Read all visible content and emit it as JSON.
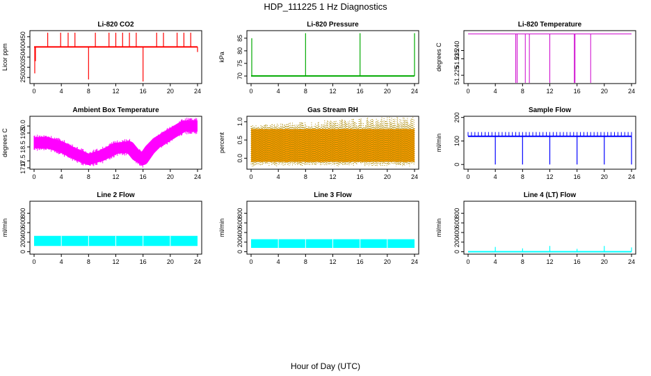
{
  "page": {
    "title": "HDP_111225  1 Hz Diagnostics",
    "xlabel": "Hour of Day (UTC)"
  },
  "chart_data": [
    {
      "type": "line",
      "title": "Li-820 CO2",
      "ylabel": "Licor ppm",
      "color": "#ff0000",
      "xlim": [
        0,
        24
      ],
      "ylim": [
        220,
        480
      ],
      "xticks": [
        0,
        4,
        8,
        12,
        16,
        20,
        24
      ],
      "yticks": [
        250,
        300,
        350,
        400,
        450
      ],
      "baseline": 400,
      "x": [
        0.1,
        0.2,
        1,
        2,
        3,
        3.9,
        5,
        6,
        7,
        8,
        9,
        10,
        11,
        12,
        13,
        14,
        15,
        16,
        17,
        18,
        19,
        20,
        21,
        22,
        23,
        24
      ],
      "y": [
        270,
        330,
        400,
        470,
        400,
        470,
        470,
        470,
        400,
        240,
        470,
        400,
        470,
        470,
        470,
        470,
        470,
        230,
        400,
        470,
        470,
        400,
        470,
        470,
        470,
        375
      ]
    },
    {
      "type": "line",
      "title": "Li-820 Pressure",
      "ylabel": "kPa",
      "color": "#00aa00",
      "xlim": [
        0,
        24
      ],
      "ylim": [
        67,
        88
      ],
      "xticks": [
        0,
        4,
        8,
        12,
        16,
        20,
        24
      ],
      "yticks": [
        70,
        75,
        80,
        85
      ],
      "baseline": 70,
      "x": [
        0.1,
        0.2,
        8,
        16,
        24
      ],
      "y": [
        85,
        70,
        87,
        87,
        87
      ]
    },
    {
      "type": "line",
      "title": "Li-820 Temperature",
      "ylabel": "degrees C",
      "color": "#cc00cc",
      "xlim": [
        0,
        24
      ],
      "ylim": [
        51.22,
        51.252
      ],
      "xticks": [
        0,
        4,
        8,
        12,
        16,
        20,
        24
      ],
      "yticks": [
        51.225,
        51.235,
        51.24
      ],
      "ytick_labels": [
        "51.225",
        "51.235",
        "51.240"
      ],
      "baseline": 51.25,
      "x": [
        7,
        7.2,
        8.4,
        9,
        12,
        15.6,
        15.7,
        18
      ],
      "y": [
        51.22,
        51.22,
        51.22,
        51.22,
        51.22,
        51.22,
        51.22,
        51.22
      ]
    },
    {
      "type": "line",
      "title": "Ambient Box Temperature",
      "ylabel": "degrees C",
      "color": "#ff00ff",
      "xlim": [
        0,
        24
      ],
      "ylim": [
        16.9,
        20.7
      ],
      "xticks": [
        0,
        4,
        8,
        12,
        16,
        20,
        24
      ],
      "yticks": [
        17,
        17.5,
        18.5,
        19.5,
        20
      ],
      "ytick_labels": [
        "17.0",
        "17.5",
        "18.5",
        "19.5",
        "20.0"
      ],
      "x": [
        0,
        2,
        4,
        6,
        8,
        10,
        12,
        14,
        15,
        16,
        17,
        18,
        20,
        22,
        24
      ],
      "y": [
        18.8,
        18.8,
        18.5,
        18.0,
        17.6,
        17.9,
        18.4,
        18.5,
        17.9,
        17.6,
        18.3,
        18.8,
        19.4,
        20.0,
        20.0
      ]
    },
    {
      "type": "scatter",
      "title": "Gas Stream RH",
      "ylabel": "percent",
      "color": "#ff9900",
      "color2": "#aa8800",
      "xlim": [
        0,
        24
      ],
      "ylim": [
        -0.3,
        1.15
      ],
      "xticks": [
        0,
        4,
        8,
        12,
        16,
        20,
        24
      ],
      "yticks": [
        0,
        0.5,
        1
      ],
      "ytick_labels": [
        "0.0",
        "0.5",
        "1.0"
      ],
      "band_low": -0.1,
      "band_high": 0.8
    },
    {
      "type": "line",
      "title": "Sample Flow",
      "ylabel": "ml/min",
      "color": "#0000ff",
      "xlim": [
        0,
        24
      ],
      "ylim": [
        -20,
        205
      ],
      "xticks": [
        0,
        4,
        8,
        12,
        16,
        20,
        24
      ],
      "yticks": [
        0,
        100,
        200
      ],
      "baseline": 120,
      "x": [
        4,
        8,
        12,
        16,
        20,
        24
      ],
      "y": [
        0,
        0,
        0,
        0,
        0,
        0
      ]
    },
    {
      "type": "area",
      "title": "Line 2 Flow",
      "ylabel": "ml/min",
      "color": "#00ffff",
      "xlim": [
        0,
        24
      ],
      "ylim": [
        -50,
        1050
      ],
      "xticks": [
        0,
        4,
        8,
        12,
        16,
        20,
        24
      ],
      "yticks": [
        0,
        200,
        400,
        600,
        800
      ],
      "band_low": 120,
      "band_high": 330
    },
    {
      "type": "area",
      "title": "Line 3 Flow",
      "ylabel": "ml/min",
      "color": "#00ffff",
      "xlim": [
        0,
        24
      ],
      "ylim": [
        -50,
        1050
      ],
      "xticks": [
        0,
        4,
        8,
        12,
        16,
        20,
        24
      ],
      "yticks": [
        0,
        200,
        400,
        600,
        800
      ],
      "band_low": 80,
      "band_high": 260
    },
    {
      "type": "line",
      "title": "Line 4 (LT) Flow",
      "ylabel": "ml/min",
      "color": "#00ffff",
      "xlim": [
        0,
        24
      ],
      "ylim": [
        -50,
        1050
      ],
      "xticks": [
        0,
        4,
        8,
        12,
        16,
        20,
        24
      ],
      "yticks": [
        0,
        200,
        400,
        600,
        800
      ],
      "baseline": 0,
      "x": [
        4,
        8,
        12,
        16,
        20,
        24
      ],
      "y": [
        100,
        70,
        120,
        60,
        120,
        90
      ]
    }
  ]
}
